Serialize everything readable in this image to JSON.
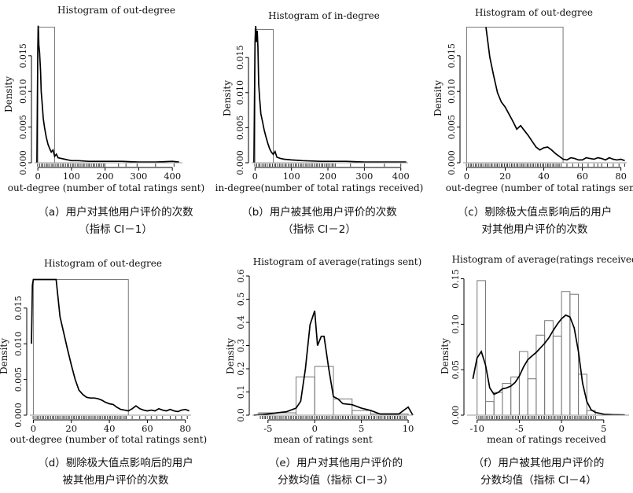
{
  "chart_data": [
    {
      "type": "histogram",
      "title": "Histogram of out-degree",
      "xlabel": "out-degree (number of total ratings sent)",
      "ylabel": "Density",
      "xlim": [
        -5,
        430
      ],
      "ylim": [
        0,
        0.0195
      ],
      "xticks": [
        0,
        100,
        200,
        300,
        400
      ],
      "yticks": [
        0.0,
        0.005,
        0.01,
        0.015
      ],
      "ytick_labels": [
        "0.000",
        "0.005",
        "0.010",
        "0.015"
      ],
      "bins": [
        {
          "x0": 0,
          "x1": 50,
          "density": 0.019
        }
      ],
      "density_curve": {
        "x": [
          -3,
          0,
          1,
          2,
          3,
          5,
          8,
          10,
          13,
          16,
          20,
          25,
          30,
          35,
          40,
          45,
          50,
          55,
          60,
          70,
          80,
          90,
          100,
          120,
          150,
          200,
          250,
          300,
          350,
          400,
          420
        ],
        "y": [
          0.0,
          0.0162,
          0.0192,
          0.0182,
          0.0165,
          0.0155,
          0.0128,
          0.01,
          0.0082,
          0.0062,
          0.0049,
          0.0036,
          0.0026,
          0.002,
          0.0015,
          0.0018,
          0.0009,
          0.0012,
          0.0007,
          0.0006,
          0.0005,
          0.0004,
          0.0003,
          0.0003,
          0.0002,
          0.0002,
          0.0002,
          0.0001,
          0.0001,
          0.0002,
          0.0001
        ]
      },
      "rug": {
        "dense_range": [
          0,
          200
        ],
        "sparse": [
          240,
          262,
          295,
          350,
          405
        ]
      }
    },
    {
      "type": "histogram",
      "title": "Histogram of in-degree",
      "xlabel": "in-degree(number of total ratings received)",
      "ylabel": "Density",
      "xlim": [
        -5,
        420
      ],
      "ylim": [
        0,
        0.0195
      ],
      "xticks": [
        0,
        100,
        200,
        300,
        400
      ],
      "yticks": [
        0.0,
        0.005,
        0.01,
        0.015
      ],
      "ytick_labels": [
        "0.000",
        "0.005",
        "0.010",
        "0.015"
      ],
      "bins": [
        {
          "x0": 0,
          "x1": 50,
          "density": 0.019
        }
      ],
      "density_curve": {
        "x": [
          -3,
          0,
          2,
          4,
          6,
          8,
          10,
          13,
          16,
          20,
          25,
          30,
          35,
          40,
          45,
          50,
          55,
          60,
          70,
          80,
          100,
          130,
          180,
          250,
          300,
          350,
          400,
          415
        ],
        "y": [
          0.0,
          0.017,
          0.0195,
          0.0172,
          0.0188,
          0.0165,
          0.0112,
          0.009,
          0.007,
          0.006,
          0.0047,
          0.0037,
          0.0028,
          0.002,
          0.0015,
          0.0012,
          0.0016,
          0.0008,
          0.0006,
          0.0005,
          0.0004,
          0.0003,
          0.0002,
          0.0002,
          0.0001,
          0.0001,
          0.0001,
          0.0001
        ]
      },
      "rug": {
        "dense_range": [
          0,
          220
        ],
        "sparse": [
          262,
          300,
          355,
          400
        ]
      }
    },
    {
      "type": "histogram",
      "title": "Histogram of out-degree",
      "xlabel": "out-degree (number of total ratings sent)",
      "ylabel": "Density",
      "xlim": [
        -1,
        83
      ],
      "ylim": [
        0,
        0.0195
      ],
      "xticks": [
        0,
        20,
        40,
        60,
        80
      ],
      "yticks": [
        0.0,
        0.005,
        0.01,
        0.015
      ],
      "ytick_labels": [
        "0.000",
        "0.005",
        "0.010",
        "0.015"
      ],
      "bins": [
        {
          "x0": 0,
          "x1": 50,
          "density": 0.019
        }
      ],
      "density_curve": {
        "x": [
          10,
          12,
          14,
          16,
          18,
          20,
          22,
          24,
          26,
          28,
          30,
          32,
          34,
          36,
          38,
          40,
          42,
          44,
          46,
          48,
          50,
          52,
          54,
          56,
          58,
          60,
          62,
          64,
          66,
          68,
          70,
          72,
          74,
          76,
          78,
          80,
          82
        ],
        "y": [
          0.019,
          0.0148,
          0.0122,
          0.0098,
          0.0085,
          0.0078,
          0.0068,
          0.0058,
          0.0047,
          0.0052,
          0.0045,
          0.0038,
          0.003,
          0.0022,
          0.0018,
          0.0021,
          0.0022,
          0.0018,
          0.0013,
          0.0009,
          0.0005,
          0.0004,
          0.0007,
          0.0006,
          0.0004,
          0.0004,
          0.0007,
          0.0006,
          0.0005,
          0.0007,
          0.0006,
          0.0004,
          0.0007,
          0.0005,
          0.0004,
          0.0005,
          0.0003
        ]
      },
      "rug": {
        "dense_range": [
          0,
          49
        ],
        "sparse": [
          52,
          55,
          58,
          60,
          63,
          66,
          68,
          70,
          73,
          76,
          79,
          82
        ]
      }
    },
    {
      "type": "histogram",
      "title": "Histogram of out-degree",
      "xlabel": "out-degree (number of total ratings sent)",
      "ylabel": "Density",
      "xlim": [
        -1,
        83
      ],
      "ylim": [
        0,
        0.0195
      ],
      "xticks": [
        0,
        20,
        40,
        60,
        80
      ],
      "yticks": [
        0.0,
        0.005,
        0.01,
        0.015
      ],
      "ytick_labels": [
        "0.000",
        "0.005",
        "0.010",
        "0.015"
      ],
      "bins": [
        {
          "x0": 0,
          "x1": 50,
          "density": 0.019
        }
      ],
      "density_curve": {
        "x": [
          -1,
          -0.5,
          0,
          12,
          14,
          16,
          18,
          20,
          22,
          24,
          26,
          28,
          30,
          32,
          34,
          36,
          38,
          40,
          42,
          44,
          46,
          48,
          50,
          52,
          54,
          56,
          58,
          60,
          62,
          64,
          66,
          68,
          70,
          72,
          74,
          76,
          78,
          80,
          82
        ],
        "y": [
          0.01,
          0.0182,
          0.019,
          0.019,
          0.0138,
          0.0115,
          0.0092,
          0.007,
          0.005,
          0.0035,
          0.0029,
          0.0025,
          0.0024,
          0.0024,
          0.0023,
          0.0021,
          0.0018,
          0.0016,
          0.0015,
          0.0011,
          0.0008,
          0.0007,
          0.0006,
          0.0009,
          0.0013,
          0.0009,
          0.0007,
          0.0006,
          0.0007,
          0.0006,
          0.0009,
          0.0007,
          0.0006,
          0.0008,
          0.0006,
          0.0005,
          0.0007,
          0.0008,
          0.0006
        ]
      },
      "rug": {
        "dense_range": [
          0,
          49
        ],
        "sparse": [
          52,
          56,
          59,
          62,
          65,
          68,
          72,
          75,
          78,
          81
        ]
      }
    },
    {
      "type": "histogram",
      "title": "Histogram of average(ratings sent)",
      "xlabel": "mean of ratings sent",
      "ylabel": "Density",
      "xlim": [
        -6.5,
        10.5
      ],
      "ylim": [
        0,
        0.6
      ],
      "xticks": [
        -5,
        0,
        5,
        10
      ],
      "yticks": [
        0.0,
        0.1,
        0.2,
        0.3,
        0.4,
        0.5,
        0.6
      ],
      "ytick_labels": [
        "0.0",
        "0.1",
        "0.2",
        "0.3",
        "0.4",
        "0.5",
        "0.6"
      ],
      "bins": [
        {
          "x0": -6,
          "x1": -2,
          "density": 0.01
        },
        {
          "x0": -2,
          "x1": 0,
          "density": 0.165
        },
        {
          "x0": 0,
          "x1": 2,
          "density": 0.21
        },
        {
          "x0": 2,
          "x1": 4,
          "density": 0.07
        },
        {
          "x0": 4,
          "x1": 6,
          "density": 0.02
        },
        {
          "x0": 6,
          "x1": 10,
          "density": 0.005
        }
      ],
      "density_curve": {
        "x": [
          -6.5,
          -5,
          -4,
          -3,
          -2,
          -1.5,
          -1,
          -0.5,
          0,
          0.3,
          0.7,
          1,
          1.5,
          2,
          2.5,
          3,
          4,
          5,
          6,
          7,
          8,
          9,
          9.5,
          10,
          10.5
        ],
        "y": [
          0.0,
          0.005,
          0.01,
          0.015,
          0.03,
          0.06,
          0.2,
          0.39,
          0.45,
          0.3,
          0.34,
          0.34,
          0.2,
          0.08,
          0.07,
          0.05,
          0.045,
          0.03,
          0.02,
          0.005,
          0.005,
          0.005,
          0.02,
          0.035,
          0.0
        ]
      },
      "rug": {
        "dense_range": [
          -5.8,
          9.8
        ],
        "sparse": []
      }
    },
    {
      "type": "histogram",
      "title": "Histogram of average(ratings received)",
      "xlabel": "mean of ratings received",
      "ylabel": "Density",
      "xlim": [
        -11,
        8
      ],
      "ylim": [
        0,
        0.16
      ],
      "xticks": [
        -10,
        -5,
        0,
        5
      ],
      "yticks": [
        0.0,
        0.05,
        0.1,
        0.15
      ],
      "ytick_labels": [
        "0.00",
        "0.05",
        "0.10",
        "0.15"
      ],
      "bins": [
        {
          "x0": -10,
          "x1": -9,
          "density": 0.148
        },
        {
          "x0": -9,
          "x1": -8,
          "density": 0.015
        },
        {
          "x0": -8,
          "x1": -7,
          "density": 0.025
        },
        {
          "x0": -7,
          "x1": -6,
          "density": 0.035
        },
        {
          "x0": -6,
          "x1": -5,
          "density": 0.042
        },
        {
          "x0": -5,
          "x1": -4,
          "density": 0.07
        },
        {
          "x0": -4,
          "x1": -3,
          "density": 0.04
        },
        {
          "x0": -3,
          "x1": -2,
          "density": 0.088
        },
        {
          "x0": -2,
          "x1": -1,
          "density": 0.104
        },
        {
          "x0": -1,
          "x1": 0,
          "density": 0.087
        },
        {
          "x0": 0,
          "x1": 1,
          "density": 0.136
        },
        {
          "x0": 1,
          "x1": 2,
          "density": 0.133
        },
        {
          "x0": 2,
          "x1": 3,
          "density": 0.045
        },
        {
          "x0": 3,
          "x1": 4,
          "density": 0.005
        }
      ],
      "density_curve": {
        "x": [
          -10.5,
          -10,
          -9.5,
          -9,
          -8.5,
          -8,
          -7.5,
          -7,
          -6.5,
          -6,
          -5.5,
          -5,
          -4.5,
          -4,
          -3.5,
          -3,
          -2.5,
          -2,
          -1.5,
          -1,
          -0.5,
          0,
          0.5,
          1,
          1.5,
          2,
          2.5,
          3,
          3.5,
          4,
          5,
          6,
          7.5
        ],
        "y": [
          0.04,
          0.063,
          0.07,
          0.055,
          0.03,
          0.023,
          0.025,
          0.029,
          0.03,
          0.032,
          0.036,
          0.043,
          0.053,
          0.061,
          0.065,
          0.069,
          0.074,
          0.079,
          0.085,
          0.093,
          0.1,
          0.106,
          0.11,
          0.108,
          0.096,
          0.07,
          0.035,
          0.015,
          0.006,
          0.003,
          0.001,
          0.0005,
          0.0003
        ]
      },
      "rug": {
        "dense_range": [
          -10,
          4
        ],
        "sparse": []
      }
    }
  ],
  "captions": [
    [
      "（a）用户对其他用户评价的次数",
      "（指标 CI－1）"
    ],
    [
      "（b）用户被其他用户评价的次数",
      "（指标 CI－2）"
    ],
    [
      "（c）剔除极大值点影响后的用户",
      "对其他用户评价的次数"
    ],
    [
      "（d）剔除极大值点影响后的用户",
      "被其他用户评价的次数"
    ],
    [
      "（e）用户对其他用户评价的",
      "分数均值（指标 CI－3）"
    ],
    [
      "（f）用户被其他用户评价的",
      "分数均值（指标 CI－4）"
    ]
  ]
}
